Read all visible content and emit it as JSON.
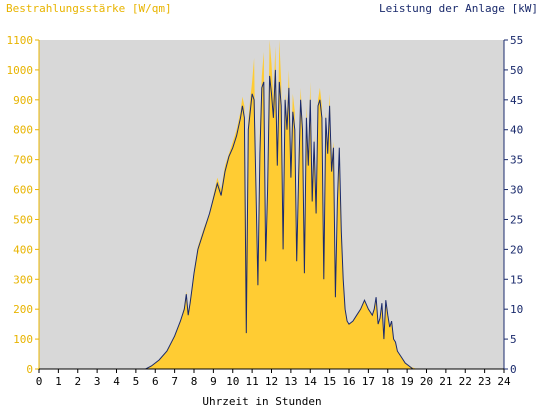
{
  "chart_data": {
    "type": "area",
    "left_axis_title": "Bestrahlungsstärke [W/qm]",
    "right_axis_title": "Leistung der Anlage [kW]",
    "xlabel": "Uhrzeit in Stunden",
    "xlim": [
      0,
      24
    ],
    "x_ticks": [
      0,
      1,
      2,
      3,
      4,
      5,
      6,
      7,
      8,
      9,
      10,
      11,
      12,
      13,
      14,
      15,
      16,
      17,
      18,
      19,
      20,
      21,
      22,
      23,
      24
    ],
    "y_left_lim": [
      0,
      1100
    ],
    "y_left_ticks": [
      0,
      100,
      200,
      300,
      400,
      500,
      600,
      700,
      800,
      900,
      1000,
      1100
    ],
    "y_right_lim": [
      0,
      55
    ],
    "y_right_ticks": [
      0,
      5,
      10,
      15,
      20,
      25,
      30,
      35,
      40,
      45,
      50,
      55
    ],
    "grid": false,
    "colors": {
      "irradiance": "#ffcc33",
      "power": "#1a2a6c",
      "plot_bg": "#d8d8d8",
      "left_axis": "#e8b400",
      "right_axis": "#1a2a6c"
    },
    "series": [
      {
        "name": "Bestrahlungsstärke [W/qm]",
        "axis": "left",
        "style": "area",
        "x": [
          0,
          5.5,
          5.8,
          6.2,
          6.6,
          7.0,
          7.3,
          7.5,
          7.6,
          7.7,
          7.8,
          7.9,
          8.0,
          8.2,
          8.5,
          8.8,
          9.0,
          9.2,
          9.4,
          9.6,
          9.8,
          10.0,
          10.2,
          10.4,
          10.5,
          10.6,
          10.7,
          10.8,
          10.9,
          11.0,
          11.1,
          11.2,
          11.3,
          11.4,
          11.5,
          11.6,
          11.7,
          11.8,
          11.9,
          12.0,
          12.1,
          12.2,
          12.3,
          12.4,
          12.5,
          12.6,
          12.7,
          12.8,
          12.9,
          13.0,
          13.1,
          13.2,
          13.3,
          13.4,
          13.5,
          13.6,
          13.7,
          13.8,
          13.9,
          14.0,
          14.1,
          14.2,
          14.3,
          14.4,
          14.5,
          14.6,
          14.7,
          14.8,
          14.9,
          15.0,
          15.1,
          15.2,
          15.3,
          15.4,
          15.5,
          15.6,
          15.7,
          15.8,
          15.9,
          16.0,
          16.2,
          16.4,
          16.6,
          16.8,
          17.0,
          17.2,
          17.3,
          17.4,
          17.5,
          17.6,
          17.7,
          17.8,
          17.9,
          18.0,
          18.1,
          18.2,
          18.3,
          18.4,
          18.5,
          18.7,
          18.9,
          19.1,
          19.3,
          19.5,
          24
        ],
        "values": [
          0,
          0,
          10,
          30,
          60,
          110,
          160,
          210,
          260,
          190,
          230,
          280,
          330,
          410,
          470,
          520,
          580,
          640,
          600,
          680,
          720,
          760,
          800,
          860,
          910,
          880,
          400,
          830,
          900,
          960,
          1040,
          600,
          300,
          800,
          980,
          1060,
          380,
          640,
          1100,
          1020,
          900,
          1080,
          700,
          1100,
          960,
          420,
          920,
          840,
          1000,
          700,
          920,
          860,
          380,
          700,
          940,
          820,
          360,
          880,
          700,
          960,
          600,
          780,
          560,
          900,
          940,
          880,
          300,
          860,
          740,
          920,
          700,
          760,
          240,
          560,
          720,
          460,
          300,
          200,
          160,
          150,
          160,
          180,
          200,
          230,
          200,
          180,
          200,
          240,
          150,
          170,
          220,
          100,
          230,
          180,
          140,
          160,
          100,
          90,
          60,
          40,
          20,
          10,
          5,
          0,
          0
        ]
      },
      {
        "name": "Leistung der Anlage [kW]",
        "axis": "right",
        "style": "line",
        "x": [
          0,
          5.5,
          5.8,
          6.2,
          6.6,
          7.0,
          7.3,
          7.5,
          7.6,
          7.7,
          7.8,
          7.9,
          8.0,
          8.2,
          8.5,
          8.8,
          9.0,
          9.2,
          9.4,
          9.6,
          9.8,
          10.0,
          10.2,
          10.4,
          10.5,
          10.6,
          10.7,
          10.8,
          10.9,
          11.0,
          11.1,
          11.2,
          11.3,
          11.4,
          11.5,
          11.6,
          11.7,
          11.8,
          11.9,
          12.0,
          12.1,
          12.2,
          12.3,
          12.4,
          12.5,
          12.6,
          12.7,
          12.8,
          12.9,
          13.0,
          13.1,
          13.2,
          13.3,
          13.4,
          13.5,
          13.6,
          13.7,
          13.8,
          13.9,
          14.0,
          14.1,
          14.2,
          14.3,
          14.4,
          14.5,
          14.6,
          14.7,
          14.8,
          14.9,
          15.0,
          15.1,
          15.2,
          15.3,
          15.4,
          15.5,
          15.6,
          15.7,
          15.8,
          15.9,
          16.0,
          16.2,
          16.4,
          16.6,
          16.8,
          17.0,
          17.2,
          17.3,
          17.4,
          17.5,
          17.6,
          17.7,
          17.8,
          17.9,
          18.0,
          18.1,
          18.2,
          18.3,
          18.4,
          18.5,
          18.7,
          18.9,
          19.1,
          19.3,
          19.5,
          24
        ],
        "values": [
          0,
          0,
          0.5,
          1.5,
          3,
          5.5,
          8,
          10,
          12.5,
          9,
          11,
          13.5,
          16,
          20,
          23,
          26,
          28.5,
          31,
          29,
          33,
          35.5,
          37,
          39,
          42,
          44,
          42,
          6,
          40,
          43,
          46,
          45,
          30,
          14,
          36,
          47,
          48,
          18,
          30,
          49,
          46,
          42,
          50,
          34,
          48,
          44,
          20,
          45,
          40,
          47,
          32,
          43,
          40,
          18,
          32,
          45,
          40,
          16,
          42,
          34,
          45,
          28,
          38,
          26,
          44,
          45,
          42,
          15,
          42,
          36,
          44,
          33,
          37,
          12,
          28,
          37,
          23,
          15,
          10,
          8,
          7.5,
          8,
          9,
          10,
          11.5,
          10,
          9,
          10,
          12,
          7.5,
          8.5,
          11,
          5,
          11.5,
          9,
          7,
          8,
          5,
          4.5,
          3,
          2,
          1,
          0.5,
          0,
          0,
          0
        ]
      }
    ]
  }
}
